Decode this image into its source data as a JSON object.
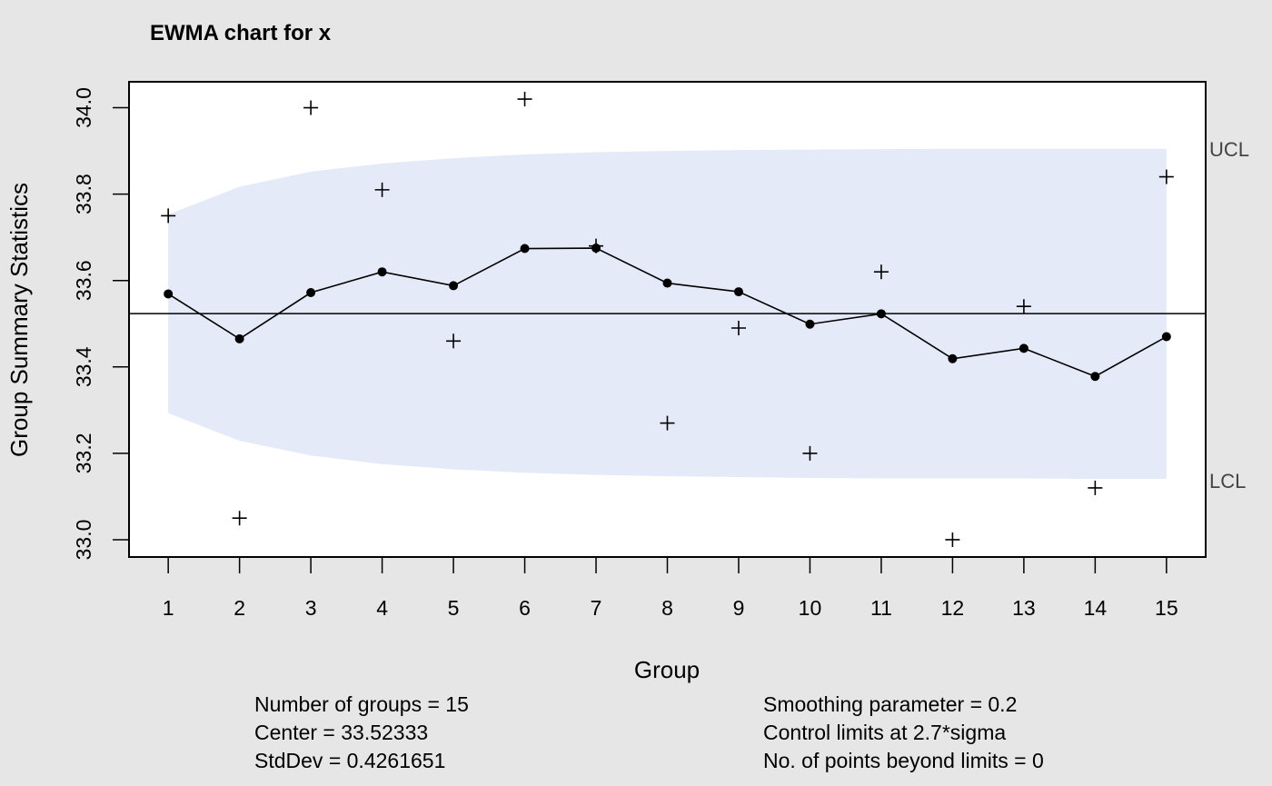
{
  "chart_data": {
    "type": "line",
    "title": "EWMA chart for x",
    "xlabel": "Group",
    "ylabel": "Group Summary Statistics",
    "xlim": [
      0.45,
      15.55
    ],
    "ylim": [
      32.96,
      34.06
    ],
    "x_ticks": [
      1,
      2,
      3,
      4,
      5,
      6,
      7,
      8,
      9,
      10,
      11,
      12,
      13,
      14,
      15
    ],
    "y_ticks": [
      33.0,
      33.2,
      33.4,
      33.6,
      33.8,
      34.0
    ],
    "y_tick_labels": [
      "33.0",
      "33.2",
      "33.4",
      "33.6",
      "33.8",
      "34.0"
    ],
    "grid": false,
    "center": 33.52333,
    "center_label": "",
    "ucl_label": "UCL",
    "lcl_label": "LCL",
    "series": [
      {
        "marker": "plus",
        "x": [
          1,
          2,
          3,
          4,
          5,
          6,
          7,
          8,
          9,
          10,
          11,
          12,
          13,
          14,
          15
        ],
        "values": [
          33.75,
          33.05,
          34.0,
          33.81,
          33.46,
          34.02,
          33.68,
          33.27,
          33.49,
          33.2,
          33.62,
          33.0,
          33.54,
          33.12,
          33.84
        ]
      },
      {
        "marker": "dot-line",
        "x": [
          1,
          2,
          3,
          4,
          5,
          6,
          7,
          8,
          9,
          10,
          11,
          12,
          13,
          14,
          15
        ],
        "values": [
          33.569,
          33.465,
          33.572,
          33.62,
          33.588,
          33.674,
          33.675,
          33.594,
          33.574,
          33.499,
          33.523,
          33.419,
          33.443,
          33.378,
          33.47
        ]
      }
    ],
    "limits": {
      "x": [
        1,
        2,
        3,
        4,
        5,
        6,
        7,
        8,
        9,
        10,
        11,
        12,
        13,
        14,
        15
      ],
      "ucl": [
        33.753,
        33.817,
        33.852,
        33.871,
        33.883,
        33.892,
        33.897,
        33.9,
        33.902,
        33.903,
        33.904,
        33.905,
        33.905,
        33.905,
        33.905
      ],
      "lcl": [
        33.293,
        33.229,
        33.195,
        33.175,
        33.163,
        33.155,
        33.15,
        33.147,
        33.145,
        33.143,
        33.142,
        33.142,
        33.142,
        33.141,
        33.141
      ]
    },
    "colors": {
      "background": "#e6e6e6",
      "plot_background": "#ffffff",
      "limit_band": "#e4eaf7",
      "line": "#000000",
      "limit_text": "#444444"
    }
  },
  "stats": {
    "num_groups": "Number of groups = 15",
    "center": "Center = 33.52333",
    "stddev": "StdDev = 0.4261651",
    "smoothing": "Smoothing parameter =  0.2",
    "control_limits": "Control limits at 2.7*sigma",
    "beyond_limits": "No. of points beyond limits = 0"
  }
}
